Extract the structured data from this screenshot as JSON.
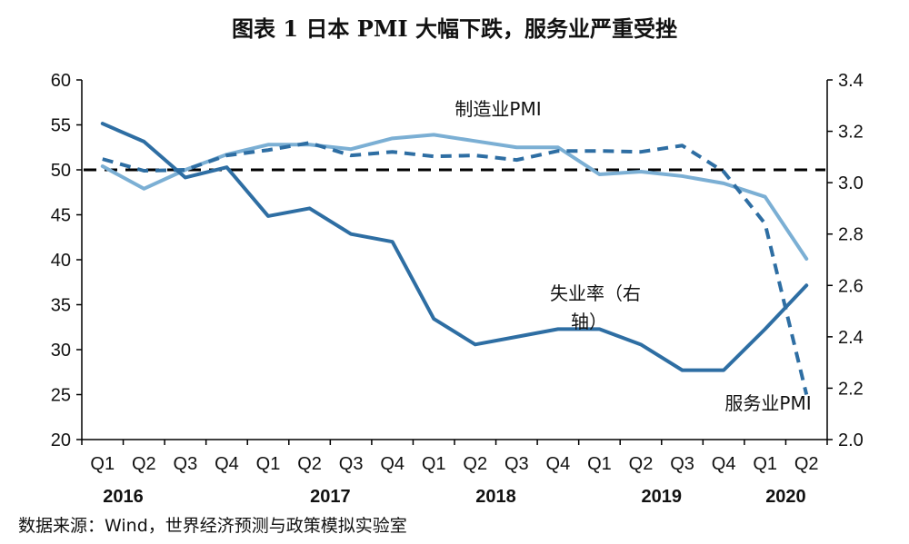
{
  "chart_data": {
    "type": "line",
    "title": "图表 1 日本 PMI 大幅下跌，服务业严重受挫",
    "categories": [
      "Q1",
      "Q2",
      "Q3",
      "Q4",
      "Q1",
      "Q2",
      "Q3",
      "Q4",
      "Q1",
      "Q2",
      "Q3",
      "Q4",
      "Q1",
      "Q2",
      "Q3",
      "Q4",
      "Q1",
      "Q2"
    ],
    "years": [
      {
        "label": "2016",
        "start": 0,
        "end": 1
      },
      {
        "label": "2017",
        "start": 4,
        "end": 7
      },
      {
        "label": "2018",
        "start": 8,
        "end": 11
      },
      {
        "label": "2019",
        "start": 12,
        "end": 15
      },
      {
        "label": "2020",
        "start": 16,
        "end": 17
      }
    ],
    "y_left": {
      "min": 20,
      "max": 60,
      "ticks": [
        20,
        25,
        30,
        35,
        40,
        45,
        50,
        55,
        60
      ]
    },
    "y_right": {
      "min": 2.0,
      "max": 3.4,
      "ticks": [
        "2.0",
        "2.2",
        "2.4",
        "2.6",
        "2.8",
        "3.0",
        "3.2",
        "3.4"
      ]
    },
    "reference_line": {
      "value": 50,
      "axis": "left",
      "style": "dashed",
      "color": "#000000"
    },
    "series": [
      {
        "name": "制造业PMI",
        "axis": "left",
        "style": "solid",
        "color": "#7bafd4",
        "values": [
          50.4,
          47.9,
          50.0,
          51.7,
          52.8,
          52.8,
          52.3,
          53.5,
          53.9,
          53.2,
          52.5,
          52.5,
          49.5,
          49.8,
          49.3,
          48.5,
          47.0,
          40.1
        ]
      },
      {
        "name": "服务业PMI",
        "axis": "left",
        "style": "dashed",
        "color": "#2e6ea3",
        "values": [
          51.2,
          49.9,
          50.0,
          51.6,
          52.2,
          53.0,
          51.6,
          52.0,
          51.5,
          51.6,
          51.1,
          52.1,
          52.1,
          52.0,
          52.7,
          49.8,
          44.0,
          25.0
        ]
      },
      {
        "name": "失业率（右轴）",
        "axis": "right",
        "style": "solid",
        "color": "#2e6ea3",
        "values": [
          3.23,
          3.16,
          3.02,
          3.06,
          2.87,
          2.9,
          2.8,
          2.77,
          2.47,
          2.37,
          2.4,
          2.43,
          2.43,
          2.37,
          2.27,
          2.27,
          2.43,
          2.6
        ]
      }
    ],
    "annotations": {
      "manufacturing": "制造业PMI",
      "unemployment_line1": "失业率（右",
      "unemployment_line2": "轴）",
      "services": "服务业PMI"
    },
    "source": "数据来源：Wind，世界经济预测与政策模拟实验室"
  }
}
